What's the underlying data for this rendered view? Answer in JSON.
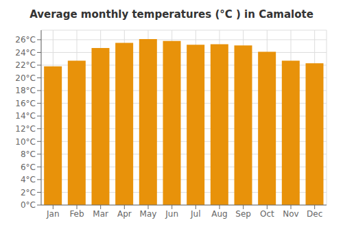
{
  "chart_data": {
    "type": "bar",
    "title": "Average monthly temperatures (°C ) in Camalote",
    "categories": [
      "Jan",
      "Feb",
      "Mar",
      "Apr",
      "May",
      "Jun",
      "Jul",
      "Aug",
      "Sep",
      "Oct",
      "Nov",
      "Dec"
    ],
    "values": [
      21.8,
      22.7,
      24.7,
      25.5,
      26.1,
      25.8,
      25.2,
      25.3,
      25.1,
      24.1,
      22.7,
      22.3
    ],
    "color": "#E8920A",
    "ylim": [
      0,
      27.5
    ],
    "yticks": [
      {
        "value": 0,
        "label": "0°C"
      },
      {
        "value": 2,
        "label": "2°C"
      },
      {
        "value": 4,
        "label": "4°C"
      },
      {
        "value": 6,
        "label": "6°C"
      },
      {
        "value": 8,
        "label": "8°C"
      },
      {
        "value": 10,
        "label": "10°C"
      },
      {
        "value": 12,
        "label": "12°C"
      },
      {
        "value": 14,
        "label": "14°C"
      },
      {
        "value": 16,
        "label": "16°C"
      },
      {
        "value": 18,
        "label": "18°C"
      },
      {
        "value": 20,
        "label": "20°C"
      },
      {
        "value": 22,
        "label": "22°C"
      },
      {
        "value": 24,
        "label": "24°C"
      },
      {
        "value": 26,
        "label": "26°C"
      }
    ],
    "grid": true
  }
}
